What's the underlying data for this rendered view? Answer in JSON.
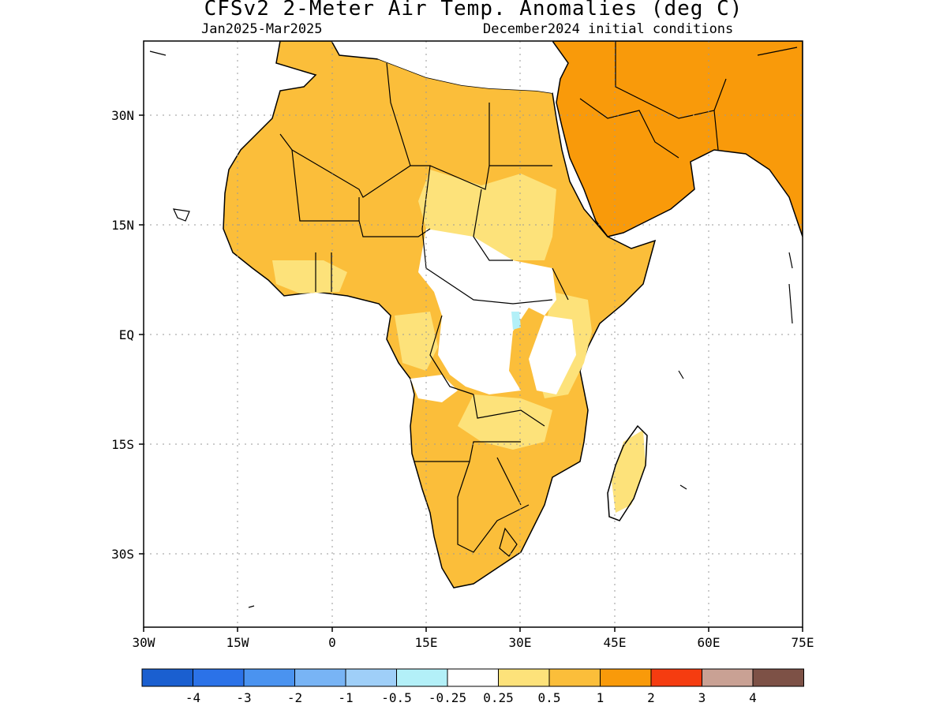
{
  "title": "CFSv2 2-Meter Air Temp. Anomalies (deg C)",
  "subtitle_left": "Jan2025-Mar2025",
  "subtitle_right": "December2024 initial conditions",
  "map": {
    "region": "Africa and Arabian Peninsula",
    "lon_range": [
      -30,
      75
    ],
    "lat_range": [
      -38,
      40
    ],
    "grid": "dotted",
    "lon_ticks": [
      "30W",
      "15W",
      "0",
      "15E",
      "30E",
      "45E",
      "60E",
      "75E"
    ],
    "lat_ticks": [
      "30N",
      "15N",
      "EQ",
      "15S",
      "30S"
    ]
  },
  "colorbar": {
    "colors": [
      "#1a5fd0",
      "#2b72e8",
      "#4a93f0",
      "#78b4f5",
      "#9fcff8",
      "#b3f0f8",
      "#ffffff",
      "#fde27a",
      "#fbbe3a",
      "#f99a0a",
      "#f53c10",
      "#c9a194",
      "#7d5146"
    ],
    "labels": [
      "-4",
      "-3",
      "-2",
      "-1",
      "-0.5",
      "-0.25",
      "0.25",
      "0.5",
      "1",
      "2",
      "3",
      "4"
    ]
  },
  "legend_values": {
    "c05_1": "#fbbe3a",
    "c025_05": "#fde27a",
    "c1_2": "#f99a0a",
    "neutral": "#ffffff",
    "cool": "#b3f0f8"
  }
}
